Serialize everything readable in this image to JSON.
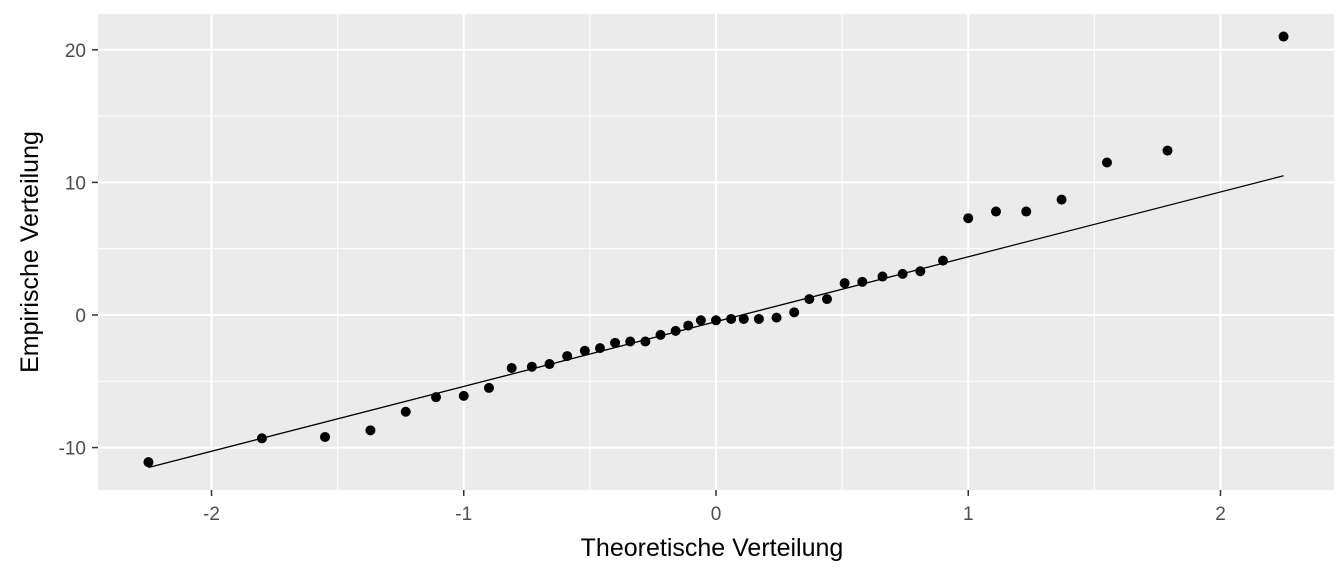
{
  "chart_data": {
    "type": "scatter",
    "xlabel": "Theoretische Verteilung",
    "ylabel": "Empirische Verteilung",
    "xlim": [
      -2.45,
      2.45
    ],
    "ylim": [
      -13.2,
      22.7
    ],
    "x_ticks": [
      -2,
      -1,
      0,
      1,
      2
    ],
    "x_tick_labels": [
      "-2",
      "-1",
      "0",
      "1",
      "2"
    ],
    "y_ticks": [
      -10,
      0,
      10,
      20
    ],
    "y_tick_labels": [
      "-10",
      "0",
      "10",
      "20"
    ],
    "grid": true,
    "legend": "none",
    "colors": {
      "panel": "#ebebeb",
      "grid": "#ffffff",
      "points": "#000000",
      "line": "#000000"
    },
    "points": {
      "x": [
        -2.25,
        -1.8,
        -1.55,
        -1.37,
        -1.23,
        -1.11,
        -1.0,
        -0.9,
        -0.81,
        -0.73,
        -0.66,
        -0.59,
        -0.52,
        -0.46,
        -0.4,
        -0.34,
        -0.28,
        -0.22,
        -0.16,
        -0.11,
        -0.06,
        0.0,
        0.06,
        0.11,
        0.17,
        0.24,
        0.31,
        0.37,
        0.44,
        0.51,
        0.58,
        0.66,
        0.74,
        0.81,
        0.9,
        1.0,
        1.11,
        1.23,
        1.37,
        1.55,
        1.79,
        2.25
      ],
      "y": [
        -11.1,
        -9.3,
        -9.2,
        -8.7,
        -7.3,
        -6.2,
        -6.1,
        -5.5,
        -4.0,
        -3.9,
        -3.7,
        -3.1,
        -2.7,
        -2.5,
        -2.1,
        -2.0,
        -2.0,
        -1.5,
        -1.2,
        -0.8,
        -0.4,
        -0.4,
        -0.3,
        -0.3,
        -0.3,
        -0.2,
        0.2,
        1.2,
        1.2,
        2.4,
        2.5,
        2.9,
        3.1,
        3.3,
        4.1,
        7.3,
        7.8,
        7.8,
        8.7,
        11.5,
        12.4,
        21.0
      ]
    },
    "reference_line": {
      "x": [
        -2.25,
        2.25
      ],
      "y": [
        -11.5,
        10.5
      ]
    }
  }
}
